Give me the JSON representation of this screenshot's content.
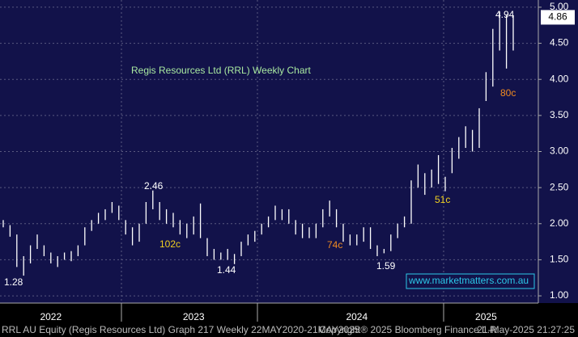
{
  "chart_data": {
    "type": "hlbar",
    "title": "Regis Resources Ltd (RRL) Weekly Chart",
    "categories": [
      null,
      null,
      null,
      null,
      null,
      null,
      null,
      "2022",
      null,
      null,
      null,
      null,
      null,
      null,
      null,
      null,
      null,
      null,
      null,
      null,
      null,
      null,
      null,
      null,
      null,
      null,
      null,
      null,
      "2023",
      null,
      null,
      null,
      null,
      null,
      null,
      null,
      null,
      null,
      null,
      null,
      null,
      null,
      null,
      null,
      null,
      null,
      null,
      null,
      null,
      null,
      null,
      null,
      "2024",
      null,
      null,
      null,
      null,
      null,
      null,
      null,
      null,
      null,
      null,
      null,
      null,
      null,
      null,
      null,
      null,
      null,
      null,
      "2025",
      null,
      null,
      null,
      null
    ],
    "high": [
      2.05,
      1.98,
      1.85,
      1.55,
      1.7,
      1.85,
      1.7,
      1.6,
      1.55,
      1.6,
      1.62,
      1.7,
      1.95,
      2.05,
      2.15,
      2.2,
      2.3,
      2.25,
      2.05,
      1.95,
      2.0,
      2.3,
      2.46,
      2.3,
      2.2,
      2.15,
      2.05,
      2.0,
      2.1,
      2.28,
      1.8,
      1.65,
      1.6,
      1.65,
      1.58,
      1.75,
      1.85,
      1.9,
      2.0,
      2.1,
      2.25,
      2.2,
      2.2,
      2.05,
      2.0,
      1.95,
      2.0,
      2.2,
      2.32,
      2.2,
      2.0,
      1.85,
      1.85,
      1.95,
      1.95,
      1.7,
      1.65,
      1.85,
      2.0,
      2.1,
      2.6,
      2.82,
      2.7,
      2.75,
      2.95,
      2.65,
      3.05,
      3.2,
      3.35,
      3.3,
      3.6,
      4.1,
      4.7,
      4.94,
      4.9,
      4.88
    ],
    "low": [
      1.95,
      1.82,
      1.4,
      1.28,
      1.45,
      1.65,
      1.55,
      1.45,
      1.4,
      1.5,
      1.48,
      1.55,
      1.7,
      1.9,
      2.0,
      2.05,
      2.15,
      2.05,
      1.85,
      1.7,
      1.75,
      2.0,
      2.2,
      2.05,
      2.0,
      1.95,
      1.85,
      1.8,
      1.85,
      1.8,
      1.55,
      1.5,
      1.5,
      1.5,
      1.44,
      1.55,
      1.7,
      1.75,
      1.85,
      1.95,
      2.05,
      2.05,
      2.0,
      1.85,
      1.8,
      1.8,
      1.8,
      1.95,
      2.1,
      1.95,
      1.75,
      1.7,
      1.7,
      1.75,
      1.65,
      1.55,
      1.59,
      1.62,
      1.8,
      1.95,
      2.0,
      2.5,
      2.4,
      2.5,
      2.55,
      2.45,
      2.7,
      2.9,
      3.05,
      3.0,
      3.05,
      3.7,
      3.9,
      4.4,
      4.15,
      4.4
    ],
    "color": "#ffffff",
    "ylim": [
      0.9,
      5.1
    ],
    "yticks": [
      {
        "value": 1,
        "label": "1.00"
      },
      {
        "value": 1.5,
        "label": "1.50"
      },
      {
        "value": 2,
        "label": "2.00"
      },
      {
        "value": 2.5,
        "label": "2.50"
      },
      {
        "value": 3,
        "label": "3.00"
      },
      {
        "value": 3.5,
        "label": "3.50"
      },
      {
        "value": 4,
        "label": "4.00"
      },
      {
        "value": 4.5,
        "label": "4.50"
      },
      {
        "value": 5,
        "label": "5.00"
      }
    ],
    "grid": true,
    "last_value": 4.86,
    "annotations": [
      "4.94",
      "2.46",
      "1.28",
      "1.44",
      "1.59",
      "102c",
      "74c",
      "80c",
      "51c"
    ],
    "watermark": "www.marketmatters.com.au",
    "footer_left": "RRL AU Equity (Regis Resources Ltd) Graph 217  Weekly 22MAY2020-21MAY2025",
    "footer_mid": "Copyright® 2025 Bloomberg Finance L.P.",
    "footer_right": "21-May-2025 21:27:25"
  }
}
